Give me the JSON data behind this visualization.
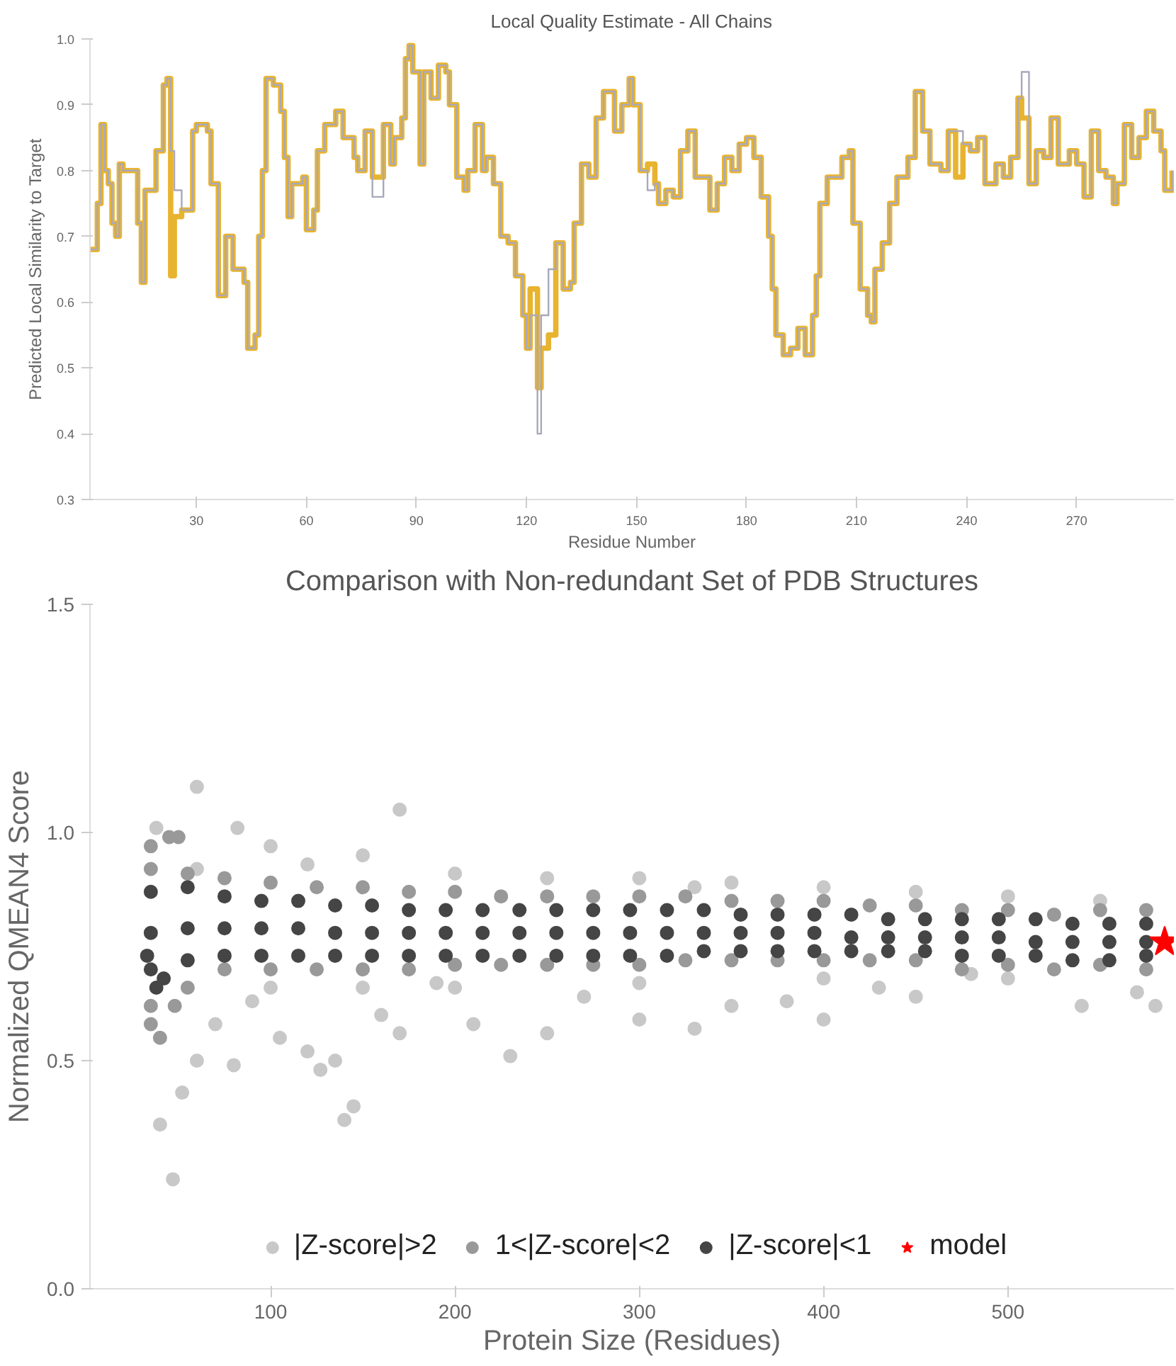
{
  "chart_data": [
    {
      "type": "step",
      "title": "Local Quality Estimate - All Chains",
      "xlabel": "Residue Number",
      "ylabel": "Predicted Local Similarity to Target",
      "xlim": [
        1,
        296.5
      ],
      "ylim": [
        0.3,
        1.0
      ],
      "xticks": [
        30,
        60,
        90,
        120,
        150,
        180,
        210,
        240,
        270
      ],
      "yticks": [
        {
          "value": 0.3,
          "label": "0.3"
        },
        {
          "value": 0.4,
          "label": "0.4"
        },
        {
          "value": 0.5,
          "label": "0.5"
        },
        {
          "value": 0.6,
          "label": "0.6"
        },
        {
          "value": 0.7,
          "label": "0.7"
        },
        {
          "value": 0.8,
          "label": "0.8"
        },
        {
          "value": 0.9,
          "label": "0.9"
        },
        {
          "value": 1.0,
          "label": "1.0"
        }
      ],
      "grid": false,
      "legend": false,
      "x": [
        1,
        3,
        4,
        5,
        6,
        7,
        8,
        9,
        10,
        13,
        14,
        15,
        16,
        19,
        21,
        22,
        23,
        24,
        26,
        29,
        30,
        33,
        34,
        36,
        38,
        40,
        43,
        44,
        46,
        47,
        48,
        49,
        51,
        53,
        54,
        55,
        56,
        59,
        60,
        62,
        63,
        65,
        68,
        70,
        73,
        74,
        76,
        78,
        81,
        83,
        84,
        86,
        87,
        88,
        89,
        91,
        92,
        94,
        96,
        98,
        99,
        101,
        103,
        104,
        106,
        108,
        109,
        111,
        113,
        115,
        117,
        119,
        120,
        121,
        123,
        124,
        126,
        128,
        130,
        132,
        133,
        135,
        137,
        139,
        141,
        144,
        146,
        148,
        149,
        151,
        153,
        155,
        156,
        158,
        160,
        162,
        164,
        166,
        168,
        170,
        172,
        174,
        176,
        178,
        180,
        182,
        184,
        186,
        187,
        188,
        190,
        192,
        194,
        196,
        198,
        199,
        200,
        202,
        204,
        206,
        208,
        209,
        211,
        213,
        214,
        215,
        217,
        219,
        221,
        224,
        226,
        228,
        230,
        233,
        235,
        237,
        239,
        241,
        243,
        245,
        248,
        250,
        252,
        254,
        255,
        257,
        259,
        261,
        263,
        265,
        268,
        270,
        272,
        274,
        276,
        278,
        280,
        281,
        283,
        285,
        287,
        289,
        291,
        293,
        294,
        296
      ],
      "series": [
        {
          "color": "#e8b430",
          "values": [
            0.68,
            0.75,
            0.87,
            0.8,
            0.78,
            0.72,
            0.7,
            0.81,
            0.8,
            0.8,
            0.72,
            0.63,
            0.77,
            0.83,
            0.93,
            0.94,
            0.64,
            0.73,
            0.74,
            0.86,
            0.87,
            0.86,
            0.78,
            0.61,
            0.7,
            0.65,
            0.63,
            0.53,
            0.55,
            0.7,
            0.8,
            0.94,
            0.93,
            0.89,
            0.82,
            0.73,
            0.78,
            0.79,
            0.71,
            0.74,
            0.83,
            0.87,
            0.89,
            0.85,
            0.82,
            0.8,
            0.86,
            0.79,
            0.87,
            0.81,
            0.85,
            0.88,
            0.97,
            0.99,
            0.95,
            0.81,
            0.95,
            0.91,
            0.96,
            0.95,
            0.9,
            0.79,
            0.77,
            0.8,
            0.87,
            0.8,
            0.82,
            0.78,
            0.7,
            0.69,
            0.64,
            0.58,
            0.53,
            0.62,
            0.47,
            0.53,
            0.55,
            0.69,
            0.62,
            0.63,
            0.72,
            0.81,
            0.79,
            0.88,
            0.92,
            0.86,
            0.9,
            0.94,
            0.9,
            0.8,
            0.81,
            0.78,
            0.75,
            0.77,
            0.76,
            0.83,
            0.86,
            0.79,
            0.79,
            0.74,
            0.78,
            0.82,
            0.8,
            0.84,
            0.85,
            0.82,
            0.76,
            0.7,
            0.62,
            0.55,
            0.52,
            0.53,
            0.56,
            0.52,
            0.58,
            0.64,
            0.75,
            0.79,
            0.79,
            0.82,
            0.83,
            0.72,
            0.62,
            0.58,
            0.57,
            0.65,
            0.69,
            0.75,
            0.79,
            0.82,
            0.92,
            0.86,
            0.81,
            0.8,
            0.86,
            0.79,
            0.84,
            0.83,
            0.85,
            0.78,
            0.81,
            0.79,
            0.82,
            0.91,
            0.88,
            0.78,
            0.83,
            0.82,
            0.88,
            0.81,
            0.83,
            0.81,
            0.76,
            0.86,
            0.8,
            0.79,
            0.75,
            0.78,
            0.87,
            0.82,
            0.85,
            0.89,
            0.86,
            0.83,
            0.77,
            0.8
          ]
        },
        {
          "color": "#a8a8bc",
          "values": [
            0.68,
            0.75,
            0.87,
            0.8,
            0.78,
            0.72,
            0.7,
            0.81,
            0.8,
            0.8,
            0.72,
            0.63,
            0.77,
            0.83,
            0.93,
            0.94,
            0.83,
            0.77,
            0.74,
            0.86,
            0.87,
            0.86,
            0.78,
            0.61,
            0.7,
            0.65,
            0.63,
            0.53,
            0.55,
            0.7,
            0.8,
            0.94,
            0.93,
            0.89,
            0.82,
            0.73,
            0.78,
            0.79,
            0.71,
            0.74,
            0.83,
            0.87,
            0.89,
            0.85,
            0.82,
            0.8,
            0.86,
            0.76,
            0.87,
            0.81,
            0.85,
            0.88,
            0.97,
            0.99,
            0.95,
            0.81,
            0.95,
            0.91,
            0.96,
            0.95,
            0.9,
            0.79,
            0.77,
            0.8,
            0.87,
            0.8,
            0.82,
            0.78,
            0.7,
            0.69,
            0.64,
            0.58,
            0.53,
            0.58,
            0.4,
            0.58,
            0.65,
            0.69,
            0.62,
            0.63,
            0.72,
            0.81,
            0.79,
            0.88,
            0.92,
            0.86,
            0.9,
            0.94,
            0.9,
            0.8,
            0.77,
            0.78,
            0.75,
            0.77,
            0.76,
            0.83,
            0.86,
            0.79,
            0.79,
            0.74,
            0.78,
            0.82,
            0.8,
            0.84,
            0.85,
            0.82,
            0.76,
            0.7,
            0.62,
            0.55,
            0.52,
            0.53,
            0.56,
            0.52,
            0.58,
            0.64,
            0.75,
            0.79,
            0.79,
            0.82,
            0.83,
            0.72,
            0.62,
            0.58,
            0.57,
            0.65,
            0.69,
            0.75,
            0.79,
            0.82,
            0.92,
            0.86,
            0.81,
            0.8,
            0.86,
            0.86,
            0.84,
            0.83,
            0.85,
            0.78,
            0.81,
            0.79,
            0.82,
            0.91,
            0.95,
            0.78,
            0.83,
            0.82,
            0.88,
            0.81,
            0.83,
            0.81,
            0.76,
            0.86,
            0.8,
            0.79,
            0.75,
            0.78,
            0.87,
            0.82,
            0.85,
            0.89,
            0.86,
            0.83,
            0.77,
            0.8
          ]
        }
      ]
    },
    {
      "type": "scatter",
      "title": "Comparison with Non-redundant Set of PDB Structures",
      "xlabel": "Protein Size (Residues)",
      "ylabel": "Normalized QMEAN4 Score",
      "xlim": [
        2,
        590
      ],
      "ylim": [
        0,
        1.5
      ],
      "xticks": [
        100,
        200,
        300,
        400,
        500
      ],
      "yticks": [
        {
          "value": 0,
          "label": "0.0"
        },
        {
          "value": 0.5,
          "label": "0.5"
        },
        {
          "value": 1.0,
          "label": "1.0"
        },
        {
          "value": 1.5,
          "label": "1.5"
        }
      ],
      "grid": false,
      "legend": "bottom",
      "marker": "circle",
      "series": [
        {
          "name": "|Z-score|>2",
          "color": "#c8c8c8",
          "x": [
            38,
            60,
            82,
            170,
            100,
            40,
            47,
            52,
            60,
            70,
            80,
            90,
            105,
            120,
            127,
            135,
            140,
            145,
            160,
            170,
            190,
            210,
            230,
            250,
            270,
            300,
            330,
            350,
            380,
            400,
            430,
            450,
            480,
            500,
            540,
            570,
            580,
            60,
            120,
            200,
            250,
            300,
            350,
            400,
            450,
            500,
            550,
            100,
            150,
            200,
            300,
            400,
            150,
            330
          ],
          "values": [
            1.01,
            1.1,
            1.01,
            1.05,
            0.97,
            0.36,
            0.24,
            0.43,
            0.5,
            0.58,
            0.49,
            0.63,
            0.55,
            0.52,
            0.48,
            0.5,
            0.37,
            0.4,
            0.6,
            0.56,
            0.67,
            0.58,
            0.51,
            0.56,
            0.64,
            0.59,
            0.57,
            0.62,
            0.63,
            0.59,
            0.66,
            0.64,
            0.69,
            0.68,
            0.62,
            0.65,
            0.62,
            0.92,
            0.93,
            0.91,
            0.9,
            0.9,
            0.89,
            0.88,
            0.87,
            0.86,
            0.85,
            0.66,
            0.66,
            0.66,
            0.67,
            0.68,
            0.95,
            0.88
          ]
        },
        {
          "name": "1<|Z-score|<2",
          "color": "#999999",
          "x": [
            35,
            35,
            35,
            35,
            55,
            55,
            75,
            75,
            100,
            100,
            125,
            125,
            150,
            150,
            175,
            175,
            200,
            200,
            225,
            225,
            250,
            250,
            275,
            275,
            300,
            300,
            325,
            325,
            350,
            350,
            375,
            375,
            400,
            400,
            425,
            425,
            450,
            450,
            475,
            475,
            500,
            500,
            525,
            525,
            550,
            550,
            575,
            575,
            45,
            50,
            40,
            48
          ],
          "values": [
            0.92,
            0.97,
            0.62,
            0.58,
            0.91,
            0.66,
            0.9,
            0.7,
            0.89,
            0.7,
            0.88,
            0.7,
            0.88,
            0.7,
            0.87,
            0.7,
            0.87,
            0.71,
            0.86,
            0.71,
            0.86,
            0.71,
            0.86,
            0.71,
            0.86,
            0.71,
            0.86,
            0.72,
            0.85,
            0.72,
            0.85,
            0.72,
            0.85,
            0.72,
            0.84,
            0.72,
            0.84,
            0.72,
            0.83,
            0.7,
            0.83,
            0.71,
            0.82,
            0.7,
            0.83,
            0.71,
            0.83,
            0.7,
            0.99,
            0.99,
            0.55,
            0.62
          ]
        },
        {
          "name": "|Z-score|<1",
          "color": "#454545",
          "x": [
            35,
            35,
            35,
            55,
            55,
            55,
            75,
            75,
            75,
            95,
            95,
            95,
            115,
            115,
            115,
            135,
            135,
            135,
            155,
            155,
            155,
            175,
            175,
            175,
            195,
            195,
            195,
            215,
            215,
            215,
            235,
            235,
            235,
            255,
            255,
            255,
            275,
            275,
            275,
            295,
            295,
            295,
            315,
            315,
            315,
            335,
            335,
            335,
            355,
            355,
            355,
            375,
            375,
            375,
            395,
            395,
            395,
            415,
            415,
            415,
            435,
            435,
            435,
            455,
            455,
            455,
            475,
            475,
            475,
            495,
            495,
            495,
            515,
            515,
            515,
            535,
            535,
            535,
            555,
            555,
            555,
            575,
            575,
            575,
            33,
            38,
            42
          ],
          "values": [
            0.87,
            0.78,
            0.7,
            0.88,
            0.79,
            0.72,
            0.86,
            0.79,
            0.73,
            0.85,
            0.79,
            0.73,
            0.85,
            0.79,
            0.73,
            0.84,
            0.78,
            0.73,
            0.84,
            0.78,
            0.73,
            0.83,
            0.78,
            0.73,
            0.83,
            0.78,
            0.73,
            0.83,
            0.78,
            0.73,
            0.83,
            0.78,
            0.73,
            0.83,
            0.78,
            0.73,
            0.83,
            0.78,
            0.73,
            0.83,
            0.78,
            0.73,
            0.83,
            0.78,
            0.73,
            0.83,
            0.78,
            0.74,
            0.82,
            0.78,
            0.74,
            0.82,
            0.78,
            0.74,
            0.82,
            0.78,
            0.74,
            0.82,
            0.77,
            0.74,
            0.81,
            0.77,
            0.74,
            0.81,
            0.77,
            0.74,
            0.81,
            0.77,
            0.73,
            0.81,
            0.77,
            0.73,
            0.81,
            0.76,
            0.73,
            0.8,
            0.76,
            0.72,
            0.8,
            0.76,
            0.72,
            0.8,
            0.76,
            0.73,
            0.73,
            0.66,
            0.68
          ]
        },
        {
          "name": "model",
          "color": "#ff0000",
          "marker": "star",
          "x": [
            585
          ],
          "values": [
            0.76
          ]
        }
      ]
    }
  ]
}
